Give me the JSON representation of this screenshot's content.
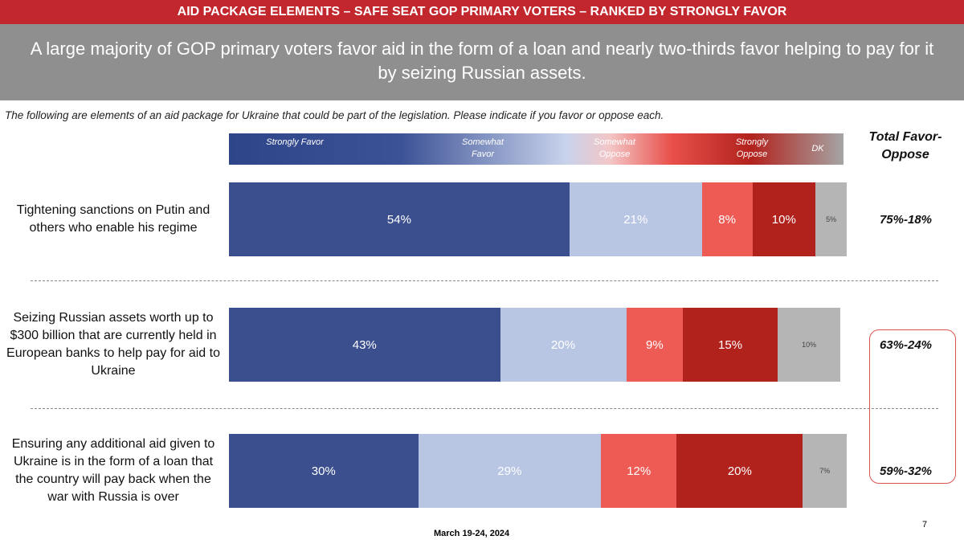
{
  "header": {
    "banner": "AID PACKAGE ELEMENTS – SAFE SEAT GOP PRIMARY VOTERS – RANKED BY STRONGLY FAVOR",
    "headline": "A large majority of GOP primary voters favor aid in the form of a loan and nearly two-thirds favor helping to pay for it by seizing Russian assets."
  },
  "question": "The following are elements of an aid package for Ukraine that could be part of the legislation. Please indicate if you favor or oppose each.",
  "footer": {
    "date": "March 19-24, 2024",
    "page": "7"
  },
  "chart_data": {
    "type": "bar",
    "orientation": "horizontal",
    "stacked": true,
    "categories": [
      "Tightening sanctions on Putin and others who enable his regime",
      "Seizing Russian assets worth up to $300 billion that are currently held in European banks to help pay for aid to Ukraine",
      "Ensuring any additional aid given to Ukraine is in the form of a loan that the country will pay back when the war with Russia is over"
    ],
    "series": [
      {
        "name": "Strongly Favor",
        "color": "#3b4f8f",
        "values": [
          54,
          43,
          30
        ],
        "value_labels": [
          "54%",
          "43%",
          "30%"
        ]
      },
      {
        "name": "Somewhat Favor",
        "color": "#b8c6e4",
        "values": [
          21,
          20,
          29
        ],
        "value_labels": [
          "21%",
          "20%",
          "29%"
        ]
      },
      {
        "name": "Somewhat Oppose",
        "color": "#ee5b55",
        "values": [
          8,
          9,
          12
        ],
        "value_labels": [
          "8%",
          "9%",
          "12%"
        ]
      },
      {
        "name": "Strongly Oppose",
        "color": "#b2221d",
        "values": [
          10,
          15,
          20
        ],
        "value_labels": [
          "10%",
          "15%",
          "20%"
        ]
      },
      {
        "name": "DK",
        "color": "#b5b5b5",
        "values": [
          5,
          10,
          7
        ],
        "value_labels": [
          "5%",
          "10%",
          "7%"
        ]
      }
    ],
    "totals_title": "Total Favor-Oppose",
    "totals": [
      "75%-18%",
      "63%-24%",
      "59%-32%"
    ],
    "xlim": [
      0,
      100
    ]
  }
}
